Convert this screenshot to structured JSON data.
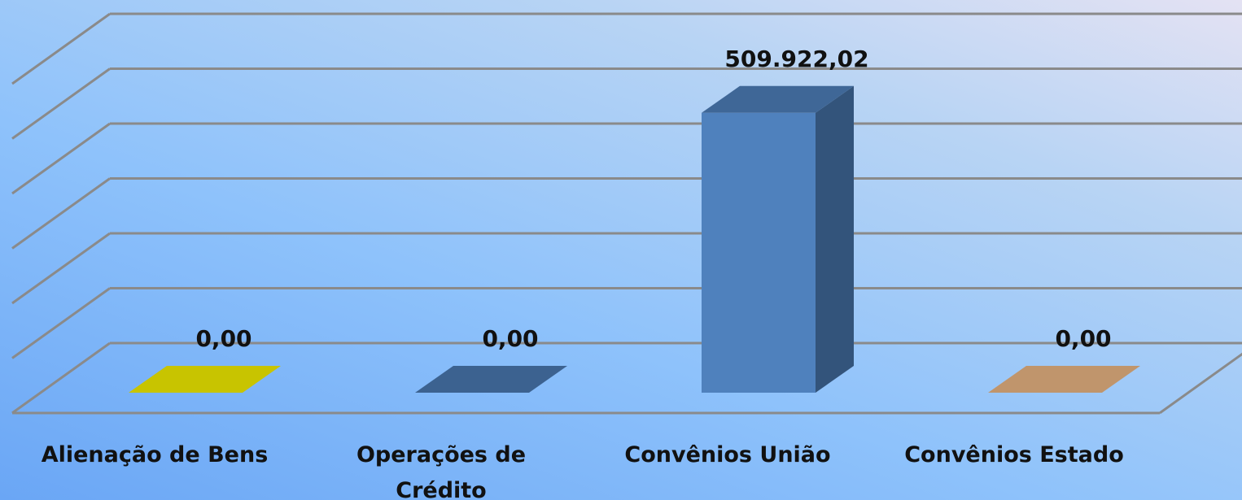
{
  "chart_data": {
    "type": "bar",
    "categories": [
      "Alienação de Bens",
      "Operações de Crédito",
      "Convênios União",
      "Convênios Estado"
    ],
    "values": [
      0,
      0,
      509922.02,
      0
    ],
    "value_labels": [
      "0,00",
      "0,00",
      "509.922,02",
      "0,00"
    ],
    "colors": [
      "#c8c400",
      "#3c6290",
      "#4f81bd",
      "#c0956c"
    ],
    "ylim": [
      0,
      600000
    ],
    "yticks": [
      0,
      100000,
      200000,
      300000,
      400000,
      500000,
      600000
    ],
    "grid": true
  }
}
